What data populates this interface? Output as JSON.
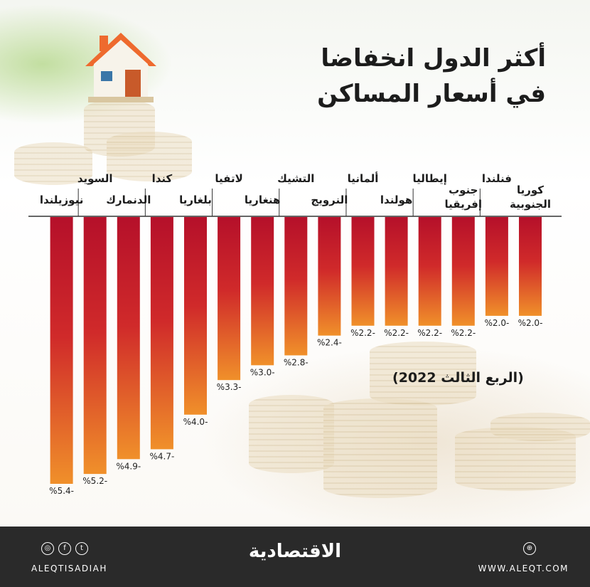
{
  "title_line1": "أكثر الدول انخفاضا",
  "title_line2": "في أسعار المساكن",
  "period": "(الربع الثالث 2022)",
  "footer": {
    "brand": "الاقتصادية",
    "handle": "ALEQTISADIAH",
    "website": "WWW.ALEQT.COM"
  },
  "colors": {
    "bar_top": "#b5102a",
    "bar_bottom": "#f0902a",
    "footer_bg": "#2a2a2a"
  },
  "chart_data": {
    "type": "bar",
    "categories": [
      "كوريا الجنوبية",
      "فنلندا",
      "جنوب إفريقيا",
      "إيطاليا",
      "هولندا",
      "ألمانيا",
      "النرويج",
      "التشيك",
      "هنغاريا",
      "لاتفيا",
      "بلغاريا",
      "كندا",
      "الدنمارك",
      "السويد",
      "نيوزيلندا"
    ],
    "values": [
      -2.0,
      -2.0,
      -2.2,
      -2.2,
      -2.2,
      -2.2,
      -2.4,
      -2.8,
      -3.0,
      -3.3,
      -4.0,
      -4.7,
      -4.9,
      -5.2,
      -5.4
    ],
    "value_labels": [
      "%2.0-",
      "%2.0-",
      "%2.2-",
      "%2.2-",
      "%2.2-",
      "%2.2-",
      "%2.4-",
      "%2.8-",
      "%3.0-",
      "%3.3-",
      "%4.0-",
      "%4.7-",
      "%4.9-",
      "%5.2-",
      "%5.4-"
    ],
    "label_lines": [
      [
        "كوريا",
        "الجنوبية"
      ],
      [
        "فنلندا"
      ],
      [
        "جنوب",
        "إفريقيا"
      ],
      [
        "إيطاليا"
      ],
      [
        "هولندا"
      ],
      [
        "ألمانيا"
      ],
      [
        "النرويج"
      ],
      [
        "التشيك"
      ],
      [
        "هنغاريا"
      ],
      [
        "لاتفيا"
      ],
      [
        "بلغاريا"
      ],
      [
        "كندا"
      ],
      [
        "الدنمارك"
      ],
      [
        "السويد"
      ],
      [
        "نيوزيلندا"
      ]
    ],
    "ylim": [
      -5.4,
      0
    ],
    "orientation": "right-to-left"
  }
}
